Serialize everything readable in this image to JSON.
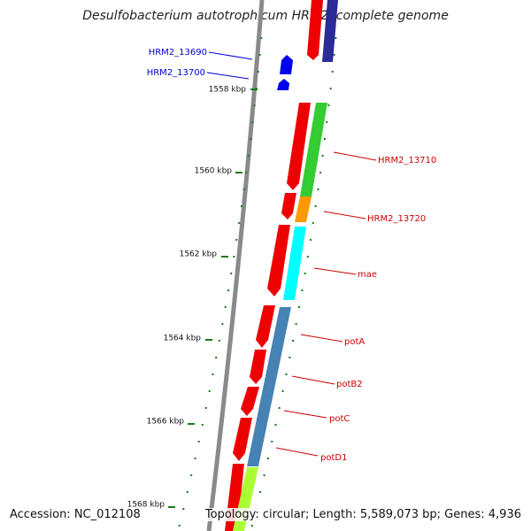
{
  "title": "Desulfobacterium autotrophicum HRM2, complete genome",
  "footer": {
    "accession": "Accession: NC_012108",
    "summary": "Topology: circular; Length: 5,589,073 bp; Genes: 4,936"
  },
  "ticks": [
    {
      "label": "1558 kbp"
    },
    {
      "label": "1560 kbp"
    },
    {
      "label": "1562 kbp"
    },
    {
      "label": "1564 kbp"
    },
    {
      "label": "1566 kbp"
    },
    {
      "label": "1568 kbp"
    }
  ],
  "gene_labels": [
    {
      "text": "HRM2_13690",
      "color": "#0000cc"
    },
    {
      "text": "HRM2_13700",
      "color": "#0000cc"
    },
    {
      "text": "HRM2_13710",
      "color": "#cc0000"
    },
    {
      "text": "HRM2_13720",
      "color": "#cc0000"
    },
    {
      "text": "mae",
      "color": "#cc0000"
    },
    {
      "text": "potA",
      "color": "#cc0000"
    },
    {
      "text": "potB2",
      "color": "#cc0000"
    },
    {
      "text": "potC",
      "color": "#cc0000"
    },
    {
      "text": "potD1",
      "color": "#cc0000"
    }
  ],
  "colors": {
    "backbone": "#8a8a8a",
    "cds": "#ee0000",
    "tick": "#1a7a1a",
    "strand_forward": "#0000ee",
    "cog_green": "#33cc33",
    "cog_orange": "#ff9900",
    "cog_cyan": "#00ffff",
    "cog_steelblue": "#4682b4",
    "cog_navy": "#2a2a99",
    "cog_lime": "#aaff33"
  }
}
